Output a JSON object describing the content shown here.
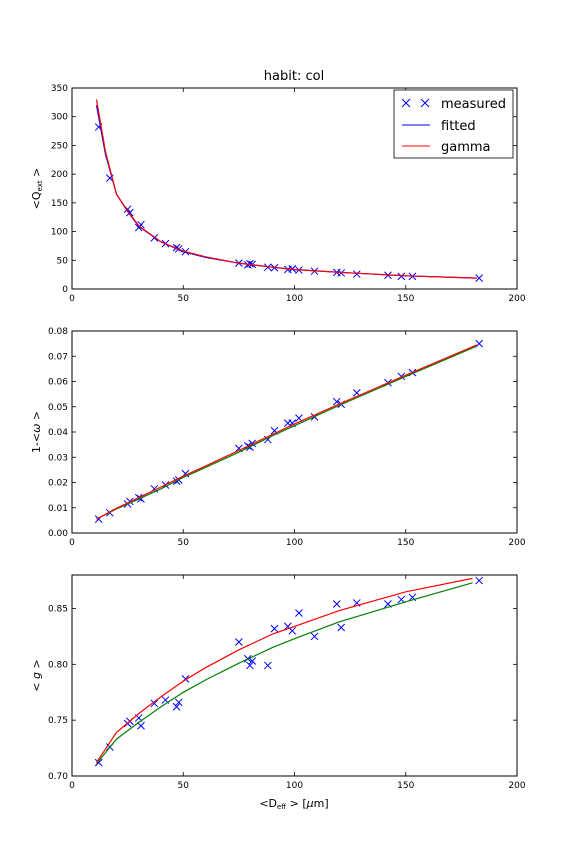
{
  "figure": {
    "title": "habit: col",
    "xlabel": "<D",
    "xlabel_sub": "eff",
    "xlabel_tail": " >  [",
    "xlabel_mu": "μ",
    "xlabel_unit": "m]",
    "legend": {
      "placement": "upper-right",
      "entries": [
        {
          "label": "measured",
          "marker": "x",
          "color": "#0000ff"
        },
        {
          "label": "fitted",
          "marker": "line",
          "color": "#0000ff"
        },
        {
          "label": "gamma",
          "marker": "line",
          "color": "#ff0000"
        }
      ]
    }
  },
  "chart_data": [
    {
      "type": "line",
      "ylabel": "<Q",
      "ylabel_sub": "ext",
      "ylabel_tail": " >",
      "xlim": [
        0,
        200
      ],
      "ylim": [
        0,
        350
      ],
      "xticks": [
        0,
        50,
        100,
        150,
        200
      ],
      "yticks": [
        0,
        50,
        100,
        150,
        200,
        250,
        300,
        350
      ],
      "grid": false,
      "series": [
        {
          "role": "measured",
          "name": "measured",
          "color": "#0000ff",
          "marker": "x",
          "x": [
            12,
            17,
            25,
            26,
            30,
            31,
            37,
            42,
            47,
            48,
            51,
            75,
            79,
            80,
            81,
            88,
            91,
            97,
            99,
            102,
            109,
            119,
            121,
            128,
            142,
            148,
            153,
            183
          ],
          "y": [
            282,
            193,
            139,
            133,
            107,
            112,
            89,
            79,
            72,
            70,
            65,
            45,
            42,
            44,
            43,
            38,
            37,
            34,
            35,
            33,
            31,
            29,
            28,
            26,
            24,
            22,
            22,
            19
          ]
        },
        {
          "role": "fitted",
          "name": "fitted",
          "color": "#0000ff",
          "x": [
            11,
            15,
            20,
            25,
            30,
            40,
            50,
            60,
            75,
            90,
            100,
            120,
            150,
            182
          ],
          "y": [
            320,
            235,
            165,
            135,
            109,
            82,
            65,
            55,
            45,
            38,
            34,
            29,
            23,
            19
          ]
        },
        {
          "role": "gamma",
          "name": "gamma",
          "color": "#ff0000",
          "x": [
            11,
            15,
            20,
            25,
            30,
            40,
            50,
            60,
            75,
            90,
            100,
            120,
            150,
            182
          ],
          "y": [
            330,
            240,
            165,
            136,
            110,
            82,
            66,
            56,
            45,
            38,
            34,
            29,
            23,
            19
          ]
        }
      ]
    },
    {
      "type": "line",
      "ylabel": "1-<",
      "ylabel_omega": "ω",
      "ylabel_tail": " >",
      "xlim": [
        0,
        200
      ],
      "ylim": [
        0,
        0.08
      ],
      "xticks": [
        0,
        50,
        100,
        150,
        200
      ],
      "yticks": [
        0.0,
        0.01,
        0.02,
        0.03,
        0.04,
        0.05,
        0.06,
        0.07,
        0.08
      ],
      "grid": false,
      "series": [
        {
          "role": "measured",
          "name": "measured",
          "color": "#0000ff",
          "marker": "x",
          "x": [
            12,
            17,
            25,
            26,
            30,
            31,
            37,
            42,
            47,
            48,
            51,
            75,
            79,
            80,
            81,
            88,
            91,
            97,
            99,
            102,
            109,
            119,
            121,
            128,
            142,
            148,
            153,
            183
          ],
          "y": [
            0.0055,
            0.008,
            0.0115,
            0.0125,
            0.014,
            0.0135,
            0.0175,
            0.019,
            0.0205,
            0.021,
            0.0235,
            0.0335,
            0.0345,
            0.034,
            0.0355,
            0.037,
            0.0405,
            0.0435,
            0.0435,
            0.0455,
            0.046,
            0.052,
            0.051,
            0.0555,
            0.0595,
            0.062,
            0.0635,
            0.075
          ]
        },
        {
          "role": "fitted",
          "name": "fitted",
          "color": "#008000",
          "x": [
            11,
            20,
            30,
            40,
            50,
            60,
            75,
            90,
            100,
            120,
            150,
            182
          ],
          "y": [
            0.0055,
            0.0095,
            0.0135,
            0.0175,
            0.022,
            0.026,
            0.032,
            0.0385,
            0.0425,
            0.0505,
            0.062,
            0.074
          ]
        },
        {
          "role": "gamma",
          "name": "gamma",
          "color": "#ff0000",
          "x": [
            11,
            20,
            30,
            40,
            50,
            60,
            75,
            90,
            100,
            120,
            150,
            182
          ],
          "y": [
            0.0055,
            0.0098,
            0.014,
            0.0182,
            0.0225,
            0.0265,
            0.0327,
            0.039,
            0.0432,
            0.051,
            0.0625,
            0.0745
          ]
        }
      ]
    },
    {
      "type": "line",
      "ylabel": "<",
      "ylabel_g": "g",
      "ylabel_tail": " >",
      "xlim": [
        0,
        200
      ],
      "ylim": [
        0.7,
        0.88
      ],
      "xticks": [
        0,
        50,
        100,
        150,
        200
      ],
      "yticks": [
        0.7,
        0.75,
        0.8,
        0.85
      ],
      "grid": false,
      "series": [
        {
          "role": "measured",
          "name": "measured",
          "color": "#0000ff",
          "marker": "x",
          "x": [
            12,
            17,
            25,
            26,
            30,
            31,
            37,
            42,
            47,
            48,
            51,
            75,
            79,
            80,
            81,
            88,
            91,
            97,
            99,
            102,
            109,
            119,
            121,
            128,
            142,
            148,
            153,
            183
          ],
          "y": [
            0.712,
            0.726,
            0.747,
            0.749,
            0.752,
            0.745,
            0.765,
            0.768,
            0.762,
            0.766,
            0.787,
            0.82,
            0.805,
            0.799,
            0.803,
            0.799,
            0.832,
            0.834,
            0.83,
            0.846,
            0.825,
            0.854,
            0.833,
            0.855,
            0.854,
            0.858,
            0.86,
            0.875
          ]
        },
        {
          "role": "fitted",
          "name": "fitted",
          "color": "#008000",
          "x": [
            11,
            20,
            30,
            40,
            50,
            60,
            75,
            90,
            100,
            120,
            150,
            180
          ],
          "y": [
            0.711,
            0.733,
            0.748,
            0.762,
            0.775,
            0.786,
            0.801,
            0.815,
            0.823,
            0.838,
            0.856,
            0.873
          ]
        },
        {
          "role": "gamma",
          "name": "gamma",
          "color": "#ff0000",
          "x": [
            11,
            20,
            30,
            40,
            50,
            60,
            75,
            90,
            100,
            120,
            150,
            180
          ],
          "y": [
            0.712,
            0.739,
            0.756,
            0.771,
            0.785,
            0.797,
            0.813,
            0.827,
            0.834,
            0.848,
            0.865,
            0.877
          ]
        }
      ]
    }
  ]
}
